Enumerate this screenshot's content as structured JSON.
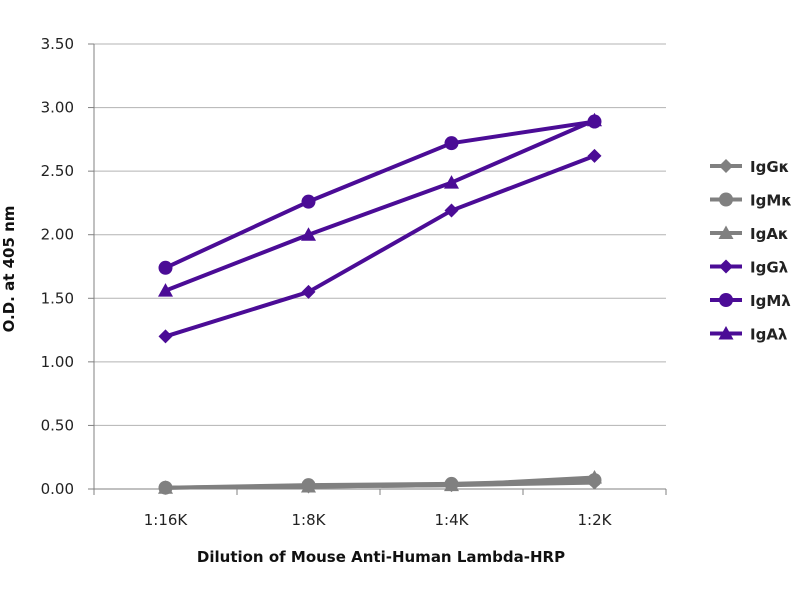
{
  "chart_data": {
    "type": "line",
    "title": "",
    "xlabel": "Dilution of Mouse Anti-Human Lambda-HRP",
    "ylabel": "O.D. at 405 nm",
    "categories": [
      "1:16K",
      "1:8K",
      "1:4K",
      "1:2K"
    ],
    "ylim": [
      0,
      3.5
    ],
    "yticks": [
      "0.00",
      "0.50",
      "1.00",
      "1.50",
      "2.00",
      "2.50",
      "3.00",
      "3.50"
    ],
    "grid": true,
    "legend_position": "right",
    "series": [
      {
        "name": "IgGκ",
        "values": [
          0.01,
          0.02,
          0.03,
          0.05
        ],
        "marker": "diamond",
        "color": "#808080"
      },
      {
        "name": "IgMκ",
        "values": [
          0.01,
          0.03,
          0.04,
          0.07
        ],
        "marker": "circle",
        "color": "#808080"
      },
      {
        "name": "IgAκ",
        "values": [
          0.01,
          0.02,
          0.03,
          0.09
        ],
        "marker": "triangle",
        "color": "#808080"
      },
      {
        "name": "IgGλ",
        "values": [
          1.2,
          1.55,
          2.19,
          2.62
        ],
        "marker": "diamond",
        "color": "#4B0C96"
      },
      {
        "name": "IgMλ",
        "values": [
          1.74,
          2.26,
          2.72,
          2.89
        ],
        "marker": "circle",
        "color": "#4B0C96"
      },
      {
        "name": "IgAλ",
        "values": [
          1.56,
          2.0,
          2.41,
          2.9
        ],
        "marker": "triangle",
        "color": "#4B0C96"
      }
    ]
  }
}
